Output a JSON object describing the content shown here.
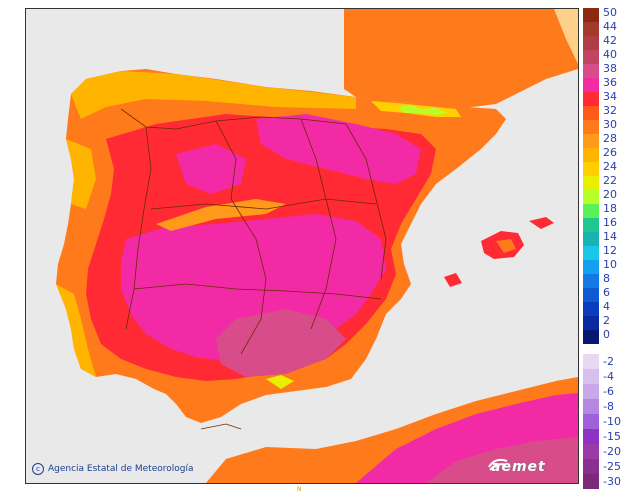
{
  "map": {
    "credit": "Agencia Estatal de Meteorología",
    "logo": "aemet",
    "north_mark": "N",
    "colors": {
      "sea": "#e9e9e9",
      "land_base": "#ff7a1a",
      "hot": "#ff2a34",
      "very_hot": "#f22aa6",
      "moderate": "#ffa500",
      "cool": "#ffcf00",
      "mountain": "#b7ff2b",
      "border": "#6b2b00"
    }
  },
  "legend": {
    "positive": [
      {
        "label": "50",
        "color": "#8b2a10"
      },
      {
        "label": "44",
        "color": "#a03a2a"
      },
      {
        "label": "42",
        "color": "#b03c45"
      },
      {
        "label": "40",
        "color": "#c04560"
      },
      {
        "label": "38",
        "color": "#d84c8a"
      },
      {
        "label": "36",
        "color": "#f22aa6"
      },
      {
        "label": "34",
        "color": "#ff2a34"
      },
      {
        "label": "32",
        "color": "#ff5a1a"
      },
      {
        "label": "30",
        "color": "#ff7a1a"
      },
      {
        "label": "28",
        "color": "#ff9a1a"
      },
      {
        "label": "26",
        "color": "#ffb400"
      },
      {
        "label": "24",
        "color": "#ffcf00"
      },
      {
        "label": "22",
        "color": "#e8f000"
      },
      {
        "label": "20",
        "color": "#b7ff2b"
      },
      {
        "label": "18",
        "color": "#5af05a"
      },
      {
        "label": "16",
        "color": "#20c890"
      },
      {
        "label": "14",
        "color": "#18b4b4"
      },
      {
        "label": "12",
        "color": "#18c8e6"
      },
      {
        "label": "10",
        "color": "#14a0f0"
      },
      {
        "label": "8",
        "color": "#1478e6"
      },
      {
        "label": "6",
        "color": "#0f5ad2"
      },
      {
        "label": "4",
        "color": "#0c3cbe"
      },
      {
        "label": "2",
        "color": "#0a28a0"
      },
      {
        "label": "0",
        "color": "#061872"
      }
    ],
    "negative": [
      {
        "label": "-2",
        "color": "#e8d8f4"
      },
      {
        "label": "-4",
        "color": "#d8c0ee"
      },
      {
        "label": "-6",
        "color": "#c8a8e8"
      },
      {
        "label": "-8",
        "color": "#b488e0"
      },
      {
        "label": "-10",
        "color": "#a060d8"
      },
      {
        "label": "-15",
        "color": "#8e32c6"
      },
      {
        "label": "-20",
        "color": "#9a3aa8"
      },
      {
        "label": "-25",
        "color": "#8a2e90"
      },
      {
        "label": "-30",
        "color": "#7a2a78"
      }
    ]
  }
}
